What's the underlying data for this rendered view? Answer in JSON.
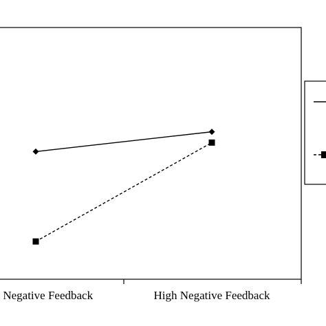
{
  "chart_data": {
    "type": "line",
    "categories": [
      "Low Negative Feedback",
      "High Negative Feedback"
    ],
    "series": [
      {
        "values": [
          3.55,
          4.1
        ],
        "marker": "diamond",
        "line_style": "solid",
        "color": "#000000"
      },
      {
        "values": [
          1.05,
          3.8
        ],
        "marker": "square",
        "line_style": "dashed",
        "color": "#000000"
      }
    ],
    "ylim": [
      0,
      7
    ],
    "grid": false,
    "legend_position": "right (cropped)",
    "title": "",
    "xlabel": "",
    "ylabel": ""
  }
}
